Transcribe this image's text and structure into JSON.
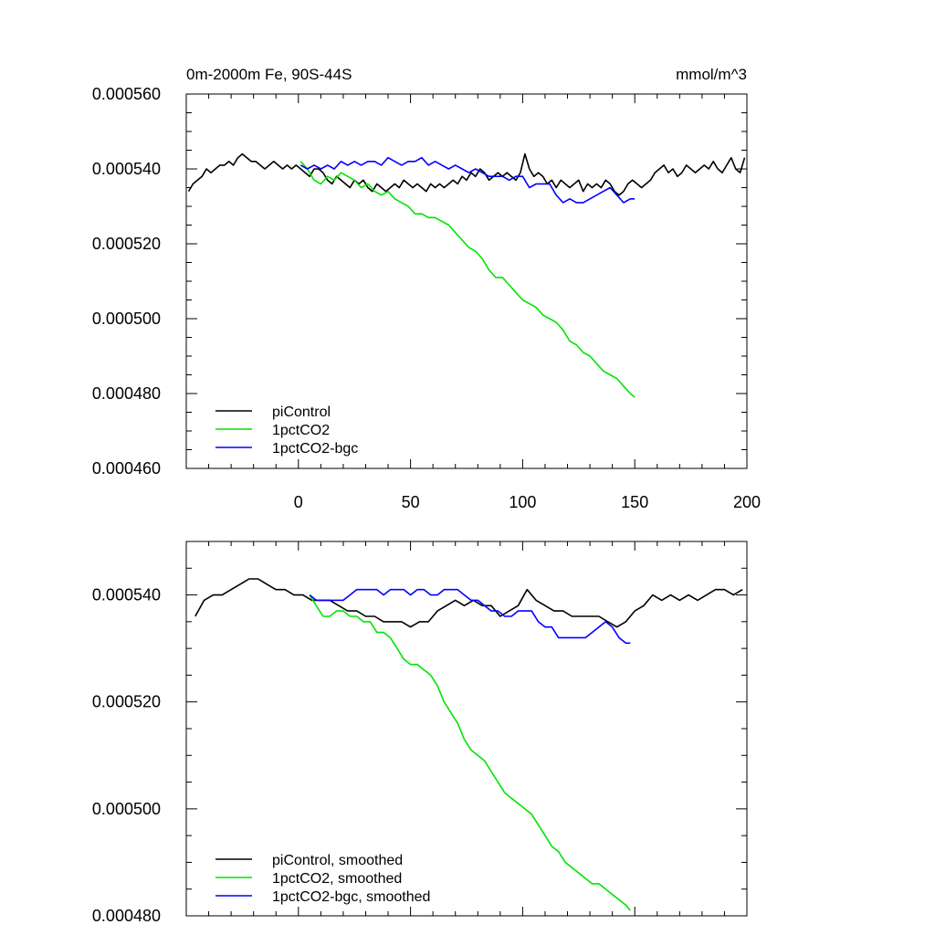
{
  "chart_data": [
    {
      "type": "line",
      "title": "0m-2000m Fe, 90S-44S",
      "units": "mmol/m^3",
      "xlim": [
        -50,
        200
      ],
      "ylim": [
        0.00046,
        0.00056
      ],
      "xticks": [
        0,
        50,
        100,
        150,
        200
      ],
      "xtick_labels": [
        "0",
        "50",
        "100",
        "150",
        "200"
      ],
      "yticks": [
        0.00046,
        0.00048,
        0.0005,
        0.00052,
        0.00054,
        0.00056
      ],
      "ytick_labels": [
        "0.000460",
        "0.000480",
        "0.000500",
        "0.000520",
        "0.000540",
        "0.000560"
      ],
      "legend_position": "bottom-left",
      "grid": false,
      "series": [
        {
          "name": "piControl",
          "color": "#000000",
          "x": [
            -49,
            -47,
            -45,
            -43,
            -41,
            -39,
            -37,
            -35,
            -33,
            -31,
            -29,
            -27,
            -25,
            -23,
            -21,
            -19,
            -17,
            -15,
            -13,
            -11,
            -9,
            -7,
            -5,
            -3,
            -1,
            1,
            3,
            5,
            7,
            9,
            11,
            13,
            15,
            17,
            19,
            21,
            23,
            25,
            27,
            29,
            31,
            33,
            35,
            37,
            39,
            41,
            43,
            45,
            47,
            49,
            51,
            53,
            55,
            57,
            59,
            61,
            63,
            65,
            67,
            69,
            71,
            73,
            75,
            77,
            79,
            81,
            83,
            85,
            87,
            89,
            91,
            93,
            95,
            97,
            99,
            101,
            103,
            105,
            107,
            109,
            111,
            113,
            115,
            117,
            119,
            121,
            123,
            125,
            127,
            129,
            131,
            133,
            135,
            137,
            139,
            141,
            143,
            145,
            147,
            149,
            151,
            153,
            155,
            157,
            159,
            161,
            163,
            165,
            167,
            169,
            171,
            173,
            175,
            177,
            179,
            181,
            183,
            185,
            187,
            189,
            191,
            193,
            195,
            197,
            199
          ],
          "y": [
            0.000534,
            0.000536,
            0.000537,
            0.000538,
            0.00054,
            0.000539,
            0.00054,
            0.000541,
            0.000541,
            0.000542,
            0.000541,
            0.000543,
            0.000544,
            0.000543,
            0.000542,
            0.000542,
            0.000541,
            0.00054,
            0.000541,
            0.000542,
            0.000541,
            0.00054,
            0.000541,
            0.00054,
            0.000541,
            0.00054,
            0.000539,
            0.000538,
            0.00054,
            0.00054,
            0.000539,
            0.000537,
            0.000536,
            0.000538,
            0.000537,
            0.000536,
            0.000535,
            0.000537,
            0.000536,
            0.000537,
            0.000535,
            0.000534,
            0.000536,
            0.000535,
            0.000534,
            0.000535,
            0.000536,
            0.000535,
            0.000537,
            0.000536,
            0.000535,
            0.000536,
            0.000535,
            0.000534,
            0.000536,
            0.000535,
            0.000536,
            0.000535,
            0.000536,
            0.000537,
            0.000536,
            0.000538,
            0.000537,
            0.000539,
            0.000538,
            0.00054,
            0.000539,
            0.000537,
            0.000538,
            0.000539,
            0.000538,
            0.000539,
            0.000538,
            0.000537,
            0.000539,
            0.000544,
            0.00054,
            0.000538,
            0.000539,
            0.000538,
            0.000536,
            0.000537,
            0.000535,
            0.000537,
            0.000536,
            0.000535,
            0.000536,
            0.000537,
            0.000534,
            0.000536,
            0.000535,
            0.000536,
            0.000535,
            0.000537,
            0.000536,
            0.000534,
            0.000533,
            0.000534,
            0.000536,
            0.000537,
            0.000536,
            0.000535,
            0.000536,
            0.000537,
            0.000539,
            0.00054,
            0.000541,
            0.000539,
            0.00054,
            0.000538,
            0.000539,
            0.000541,
            0.00054,
            0.000539,
            0.00054,
            0.000541,
            0.00054,
            0.000542,
            0.00054,
            0.000539,
            0.000541,
            0.000543,
            0.00054,
            0.000539,
            0.000543
          ]
        },
        {
          "name": "1pctCO2",
          "color": "#00e400",
          "x": [
            1,
            4,
            7,
            10,
            13,
            16,
            19,
            22,
            25,
            28,
            31,
            34,
            37,
            40,
            43,
            46,
            49,
            52,
            55,
            58,
            61,
            64,
            67,
            70,
            73,
            76,
            79,
            82,
            85,
            88,
            91,
            94,
            97,
            100,
            103,
            106,
            109,
            112,
            115,
            118,
            121,
            124,
            127,
            130,
            133,
            136,
            139,
            142,
            145,
            148,
            150
          ],
          "y": [
            0.000542,
            0.00054,
            0.000537,
            0.000536,
            0.000538,
            0.000537,
            0.000539,
            0.000538,
            0.000537,
            0.000535,
            0.000536,
            0.000534,
            0.000533,
            0.000534,
            0.000532,
            0.000531,
            0.00053,
            0.000528,
            0.000528,
            0.000527,
            0.000527,
            0.000526,
            0.000525,
            0.000523,
            0.000521,
            0.000519,
            0.000518,
            0.000516,
            0.000513,
            0.000511,
            0.000511,
            0.000509,
            0.000507,
            0.000505,
            0.000504,
            0.000503,
            0.000501,
            0.0005,
            0.000499,
            0.000497,
            0.000494,
            0.000493,
            0.000491,
            0.00049,
            0.000488,
            0.000486,
            0.000485,
            0.000484,
            0.000482,
            0.00048,
            0.000479
          ]
        },
        {
          "name": "1pctCO2-bgc",
          "color": "#0000ff",
          "x": [
            1,
            4,
            7,
            10,
            13,
            16,
            19,
            22,
            25,
            28,
            31,
            34,
            37,
            40,
            43,
            46,
            49,
            52,
            55,
            58,
            61,
            64,
            67,
            70,
            73,
            76,
            79,
            82,
            85,
            88,
            91,
            94,
            97,
            100,
            103,
            106,
            109,
            112,
            115,
            118,
            121,
            124,
            127,
            130,
            133,
            136,
            139,
            142,
            145,
            148,
            150
          ],
          "y": [
            0.000541,
            0.00054,
            0.000541,
            0.00054,
            0.000541,
            0.00054,
            0.000542,
            0.000541,
            0.000542,
            0.000541,
            0.000542,
            0.000542,
            0.000541,
            0.000543,
            0.000542,
            0.000541,
            0.000542,
            0.000542,
            0.000543,
            0.000541,
            0.000542,
            0.000541,
            0.00054,
            0.000541,
            0.00054,
            0.000539,
            0.00054,
            0.000539,
            0.000538,
            0.000538,
            0.000538,
            0.000537,
            0.000538,
            0.000538,
            0.000535,
            0.000536,
            0.000536,
            0.000536,
            0.000533,
            0.000531,
            0.000532,
            0.000531,
            0.000531,
            0.000532,
            0.000533,
            0.000534,
            0.000535,
            0.000533,
            0.000531,
            0.000532,
            0.000532
          ]
        }
      ]
    },
    {
      "type": "line",
      "xlim": [
        -50,
        200
      ],
      "ylim": [
        0.00048,
        0.00055
      ],
      "xticks": [
        0,
        50,
        100,
        150,
        200
      ],
      "yticks": [
        0.00048,
        0.0005,
        0.00052,
        0.00054
      ],
      "ytick_labels": [
        "0.000480",
        "0.000500",
        "0.000520",
        "0.000540"
      ],
      "legend_position": "bottom-left",
      "grid": false,
      "series": [
        {
          "name": "piControl, smoothed",
          "color": "#000000",
          "x": [
            -46,
            -42,
            -38,
            -34,
            -30,
            -26,
            -22,
            -18,
            -14,
            -10,
            -6,
            -2,
            2,
            6,
            10,
            14,
            18,
            22,
            26,
            30,
            34,
            38,
            42,
            46,
            50,
            54,
            58,
            62,
            66,
            70,
            74,
            78,
            82,
            86,
            90,
            94,
            98,
            102,
            106,
            110,
            114,
            118,
            122,
            126,
            130,
            134,
            138,
            142,
            146,
            150,
            154,
            158,
            162,
            166,
            170,
            174,
            178,
            182,
            186,
            190,
            194,
            198
          ],
          "y": [
            0.000536,
            0.000539,
            0.00054,
            0.00054,
            0.000541,
            0.000542,
            0.000543,
            0.000543,
            0.000542,
            0.000541,
            0.000541,
            0.00054,
            0.00054,
            0.000539,
            0.000539,
            0.000539,
            0.000538,
            0.000537,
            0.000537,
            0.000536,
            0.000536,
            0.000535,
            0.000535,
            0.000535,
            0.000534,
            0.000535,
            0.000535,
            0.000537,
            0.000538,
            0.000539,
            0.000538,
            0.000539,
            0.000538,
            0.000538,
            0.000536,
            0.000537,
            0.000538,
            0.000541,
            0.000539,
            0.000538,
            0.000537,
            0.000537,
            0.000536,
            0.000536,
            0.000536,
            0.000536,
            0.000535,
            0.000534,
            0.000535,
            0.000537,
            0.000538,
            0.00054,
            0.000539,
            0.00054,
            0.000539,
            0.00054,
            0.000539,
            0.00054,
            0.000541,
            0.000541,
            0.00054,
            0.000541
          ]
        },
        {
          "name": "1pctCO2, smoothed",
          "color": "#00e400",
          "x": [
            5,
            8,
            11,
            14,
            17,
            20,
            23,
            26,
            29,
            32,
            35,
            38,
            41,
            44,
            47,
            50,
            53,
            56,
            59,
            62,
            65,
            68,
            71,
            74,
            77,
            80,
            83,
            86,
            89,
            92,
            95,
            98,
            101,
            104,
            107,
            110,
            113,
            116,
            119,
            122,
            125,
            128,
            131,
            134,
            137,
            140,
            143,
            146,
            148
          ],
          "y": [
            0.00054,
            0.000538,
            0.000536,
            0.000536,
            0.000537,
            0.000537,
            0.000536,
            0.000536,
            0.000535,
            0.000535,
            0.000533,
            0.000533,
            0.000532,
            0.00053,
            0.000528,
            0.000527,
            0.000527,
            0.000526,
            0.000525,
            0.000523,
            0.00052,
            0.000518,
            0.000516,
            0.000513,
            0.000511,
            0.00051,
            0.000509,
            0.000507,
            0.000505,
            0.000503,
            0.000502,
            0.000501,
            0.0005,
            0.000499,
            0.000497,
            0.000495,
            0.000493,
            0.000492,
            0.00049,
            0.000489,
            0.000488,
            0.000487,
            0.000486,
            0.000486,
            0.000485,
            0.000484,
            0.000483,
            0.000482,
            0.000481
          ]
        },
        {
          "name": "1pctCO2-bgc, smoothed",
          "color": "#0000ff",
          "x": [
            5,
            8,
            11,
            14,
            17,
            20,
            23,
            26,
            29,
            32,
            35,
            38,
            41,
            44,
            47,
            50,
            53,
            56,
            59,
            62,
            65,
            68,
            71,
            74,
            77,
            80,
            83,
            86,
            89,
            92,
            95,
            98,
            101,
            104,
            107,
            110,
            113,
            116,
            119,
            122,
            125,
            128,
            131,
            134,
            137,
            140,
            143,
            146,
            148
          ],
          "y": [
            0.00054,
            0.000539,
            0.000539,
            0.000539,
            0.000539,
            0.000539,
            0.00054,
            0.000541,
            0.000541,
            0.000541,
            0.000541,
            0.00054,
            0.000541,
            0.000541,
            0.000541,
            0.00054,
            0.000541,
            0.000541,
            0.00054,
            0.00054,
            0.000541,
            0.000541,
            0.000541,
            0.00054,
            0.000539,
            0.000539,
            0.000538,
            0.000537,
            0.000537,
            0.000536,
            0.000536,
            0.000537,
            0.000537,
            0.000537,
            0.000535,
            0.000534,
            0.000534,
            0.000532,
            0.000532,
            0.000532,
            0.000532,
            0.000532,
            0.000533,
            0.000534,
            0.000535,
            0.000534,
            0.000532,
            0.000531,
            0.000531
          ]
        }
      ]
    }
  ]
}
